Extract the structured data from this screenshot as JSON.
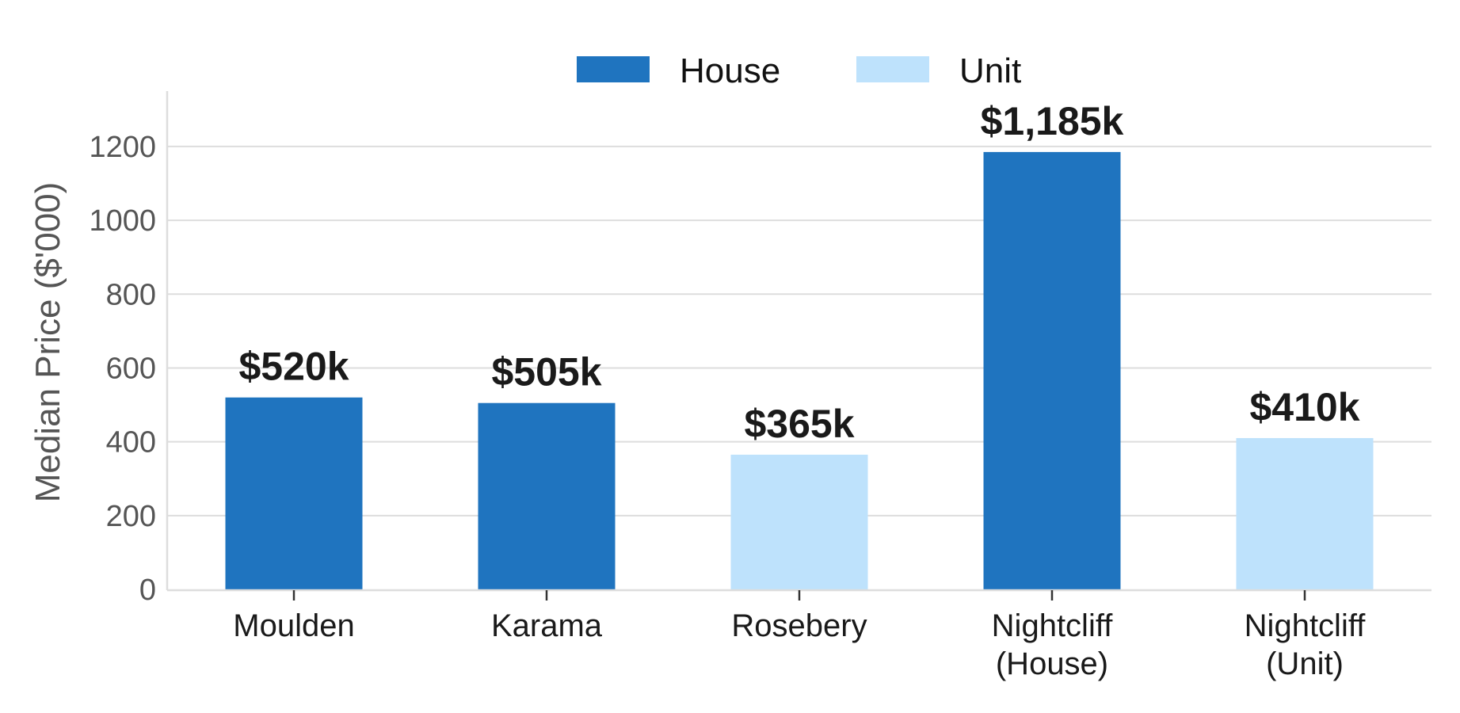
{
  "chart_data": {
    "type": "bar",
    "title": "",
    "xlabel": "",
    "ylabel": "Median Price ($'000)",
    "ylim": [
      0,
      1350
    ],
    "yticks": [
      0,
      200,
      400,
      600,
      800,
      1000,
      1200
    ],
    "grid": "horizontal",
    "legend_position": "top-center",
    "legend": [
      {
        "name": "House",
        "color": "#1f74bf"
      },
      {
        "name": "Unit",
        "color": "#bee2fc"
      }
    ],
    "bars": [
      {
        "category": [
          "Moulden"
        ],
        "value": 520,
        "type": "House",
        "label": "$520k"
      },
      {
        "category": [
          "Karama"
        ],
        "value": 505,
        "type": "House",
        "label": "$505k"
      },
      {
        "category": [
          "Rosebery"
        ],
        "value": 365,
        "type": "Unit",
        "label": "$365k"
      },
      {
        "category": [
          "Nightcliff",
          "(House)"
        ],
        "value": 1185,
        "type": "House",
        "label": "$1,185k"
      },
      {
        "category": [
          "Nightcliff",
          "(Unit)"
        ],
        "value": 410,
        "type": "Unit",
        "label": "$410k"
      }
    ]
  }
}
